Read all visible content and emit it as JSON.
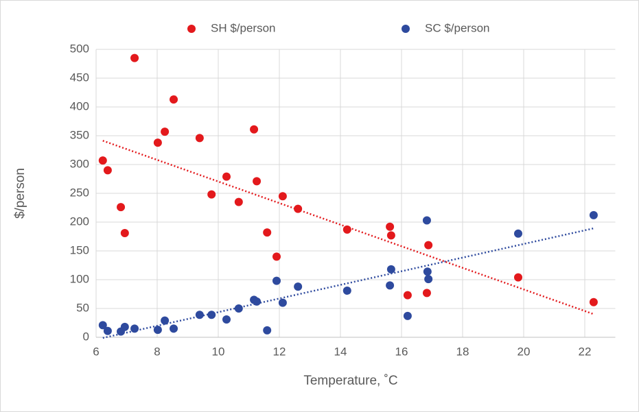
{
  "chart_data": {
    "type": "scatter",
    "x_label": "Temperature, ˚C",
    "y_label": "$/person",
    "xlim": [
      6,
      23
    ],
    "xticks": [
      6,
      8,
      10,
      12,
      14,
      16,
      18,
      20,
      22
    ],
    "ylim": [
      0,
      500
    ],
    "yticks": [
      0,
      50,
      100,
      150,
      200,
      250,
      300,
      350,
      400,
      450,
      500
    ],
    "grid": true,
    "legend": "top",
    "series": [
      {
        "name": "SH $/person",
        "color": "#e3191c",
        "trendline": "linear",
        "x": [
          6.22,
          6.38,
          6.81,
          6.94,
          7.26,
          8.02,
          8.25,
          8.54,
          9.39,
          9.78,
          10.27,
          10.67,
          11.17,
          11.26,
          11.6,
          11.91,
          12.11,
          12.61,
          14.22,
          15.62,
          15.66,
          16.2,
          16.83,
          16.88,
          19.82,
          22.29
        ],
        "values": [
          307,
          290,
          226,
          181,
          485,
          338,
          357,
          413,
          346,
          248,
          279,
          235,
          361,
          271,
          182,
          140,
          245,
          223,
          187,
          192,
          177,
          73,
          77,
          160,
          104,
          61
        ]
      },
      {
        "name": "SC $/person",
        "color": "#2e4a9e",
        "trendline": "linear",
        "x": [
          6.22,
          6.38,
          6.81,
          6.94,
          7.26,
          8.02,
          8.25,
          8.54,
          9.39,
          9.78,
          10.27,
          10.67,
          11.17,
          11.26,
          11.6,
          11.91,
          12.11,
          12.61,
          14.22,
          15.62,
          15.66,
          16.2,
          16.83,
          16.85,
          16.88,
          19.82,
          22.29
        ],
        "values": [
          21,
          11,
          10,
          18,
          15,
          13,
          29,
          15,
          39,
          39,
          31,
          50,
          65,
          62,
          12,
          98,
          60,
          88,
          81,
          90,
          118,
          37,
          203,
          114,
          101,
          180,
          212
        ]
      }
    ]
  }
}
